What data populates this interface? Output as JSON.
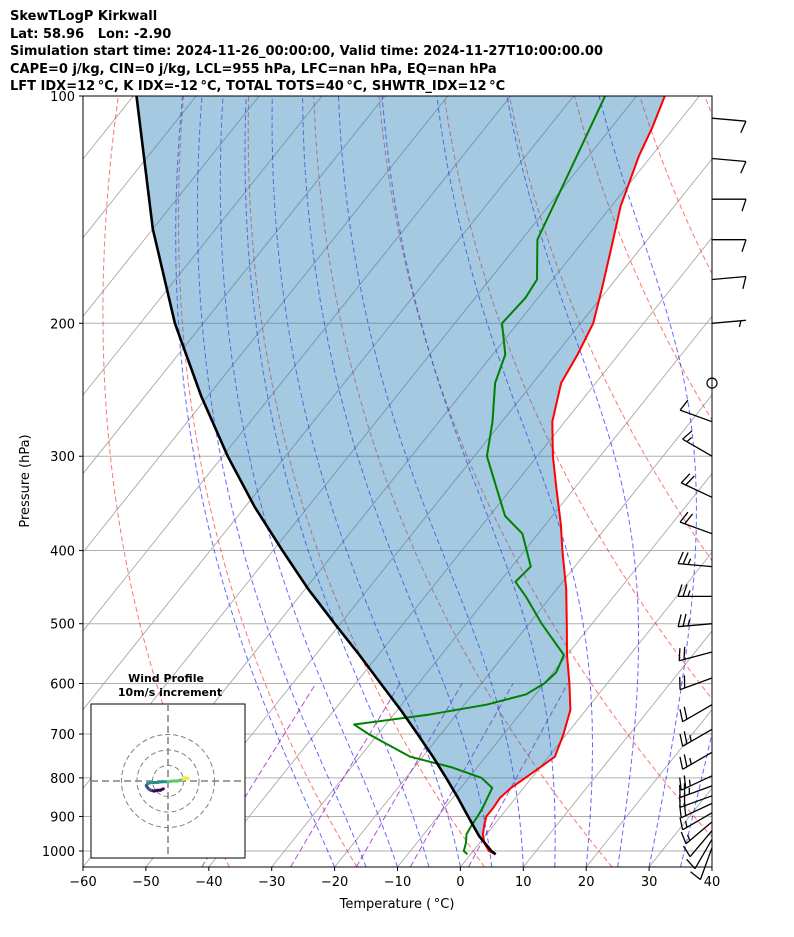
{
  "title": {
    "line1": "SkewTLogP Kirkwall",
    "line2": "Lat: 58.96   Lon: -2.90",
    "line3": "Simulation start time: 2024-11-26_00:00:00, Valid time: 2024-11-27T10:00:00.00",
    "line4": "CAPE=0 j/kg, CIN=0 j/kg, LCL=955 hPa, LFC=nan hPa, EQ=nan hPa",
    "line5": "LFT IDX=12 °C, K IDX=-12 °C, TOTAL TOTS=40 °C, SHWTR_IDX=12 °C"
  },
  "chart_data": {
    "type": "line",
    "xlabel": "Temperature ( °C)",
    "ylabel": "Pressure (hPa)",
    "xlim": [
      -60,
      40
    ],
    "ylim": [
      1050,
      100
    ],
    "yscale": "log",
    "skew": 35,
    "x_ticks": [
      -60,
      -50,
      -40,
      -30,
      -20,
      -10,
      0,
      10,
      20,
      30,
      40
    ],
    "y_ticks": [
      1000,
      900,
      800,
      700,
      600,
      500,
      400,
      300,
      200,
      100
    ],
    "grid": true,
    "colors": {
      "temperature": "#ff0000",
      "dewpoint": "#008000",
      "parcel": "#000000",
      "shading": "#1f77b4",
      "dry_adiabats": "#ff0000",
      "moist_adiabats": "#0000ff",
      "mixing_ratio": "#9400d3",
      "isotherms": "#888888"
    },
    "series": [
      {
        "key": "temperature",
        "pressure": [
          1010,
          1000,
          975,
          950,
          925,
          900,
          875,
          850,
          825,
          800,
          775,
          750,
          700,
          650,
          600,
          550,
          500,
          450,
          400,
          370,
          330,
          300,
          270,
          240,
          220,
          200,
          180,
          160,
          140,
          120,
          110,
          100
        ],
        "values": [
          4.0,
          2.5,
          0.7,
          -0.6,
          -1.5,
          -2.3,
          -2.3,
          -2.5,
          -2.0,
          -1.0,
          0.0,
          1.0,
          -0.5,
          -2.5,
          -6.0,
          -10.0,
          -14.0,
          -18.5,
          -24.0,
          -27.5,
          -33.0,
          -37.5,
          -42.0,
          -45.5,
          -46.5,
          -48.0,
          -51.0,
          -54.5,
          -58.5,
          -62.0,
          -63.5,
          -65.5
        ]
      },
      {
        "key": "dewpoint",
        "pressure": [
          1010,
          1000,
          975,
          950,
          925,
          900,
          875,
          850,
          825,
          800,
          775,
          750,
          700,
          680,
          660,
          640,
          620,
          600,
          580,
          550,
          500,
          460,
          440,
          420,
          380,
          360,
          300,
          270,
          240,
          220,
          200,
          185,
          175,
          155,
          130,
          100
        ],
        "values": [
          -0.5,
          -1.5,
          -2.2,
          -3.2,
          -3.5,
          -3.7,
          -4.0,
          -4.5,
          -5.0,
          -8.0,
          -14.0,
          -22.0,
          -31.5,
          -35.0,
          -24.5,
          -16.5,
          -11.5,
          -10.0,
          -9.5,
          -10.5,
          -18.0,
          -24.0,
          -27.5,
          -27.0,
          -32.5,
          -37.5,
          -48.0,
          -51.5,
          -56.0,
          -58.0,
          -62.5,
          -62.0,
          -62.5,
          -67.5,
          -70.5,
          -75.0
        ]
      },
      {
        "key": "parcel",
        "pressure": [
          1010,
          1000,
          955,
          900,
          850,
          800,
          750,
          700,
          650,
          600,
          550,
          500,
          450,
          400,
          350,
          300,
          250,
          200,
          150,
          100
        ],
        "values": [
          4.0,
          2.9,
          -1.0,
          -5.2,
          -9.2,
          -13.6,
          -18.4,
          -23.7,
          -29.5,
          -36.0,
          -43.0,
          -50.9,
          -59.5,
          -68.5,
          -78.5,
          -89.2,
          -101.0,
          -114.5,
          -130.0,
          -149.5
        ]
      }
    ],
    "wind_barbs": {
      "units": "knots",
      "items": [
        {
          "p": 990,
          "speed": 10,
          "dir": 200
        },
        {
          "p": 965,
          "speed": 10,
          "dir": 210
        },
        {
          "p": 940,
          "speed": 10,
          "dir": 220
        },
        {
          "p": 915,
          "speed": 15,
          "dir": 230
        },
        {
          "p": 890,
          "speed": 15,
          "dir": 240
        },
        {
          "p": 865,
          "speed": 20,
          "dir": 245
        },
        {
          "p": 845,
          "speed": 20,
          "dir": 250
        },
        {
          "p": 820,
          "speed": 25,
          "dir": 250
        },
        {
          "p": 795,
          "speed": 25,
          "dir": 245
        },
        {
          "p": 740,
          "speed": 25,
          "dir": 240
        },
        {
          "p": 690,
          "speed": 25,
          "dir": 240
        },
        {
          "p": 640,
          "speed": 20,
          "dir": 240
        },
        {
          "p": 590,
          "speed": 20,
          "dir": 250
        },
        {
          "p": 545,
          "speed": 20,
          "dir": 255
        },
        {
          "p": 500,
          "speed": 25,
          "dir": 265
        },
        {
          "p": 460,
          "speed": 25,
          "dir": 270
        },
        {
          "p": 420,
          "speed": 25,
          "dir": 275
        },
        {
          "p": 380,
          "speed": 20,
          "dir": 290
        },
        {
          "p": 340,
          "speed": 20,
          "dir": 295
        },
        {
          "p": 300,
          "speed": 15,
          "dir": 300
        },
        {
          "p": 270,
          "speed": 10,
          "dir": 290
        },
        {
          "p": 240,
          "speed": 0,
          "dir": 0
        },
        {
          "p": 200,
          "speed": 5,
          "dir": 85
        },
        {
          "p": 175,
          "speed": 10,
          "dir": 85
        },
        {
          "p": 155,
          "speed": 10,
          "dir": 90
        },
        {
          "p": 137,
          "speed": 10,
          "dir": 90
        },
        {
          "p": 121,
          "speed": 10,
          "dir": 95
        },
        {
          "p": 107,
          "speed": 10,
          "dir": 95
        }
      ]
    },
    "inset": {
      "title_line1": "Wind Profile",
      "title_line2": "10m/s increment",
      "rings_ms": [
        10,
        20,
        30
      ],
      "colormap": [
        "#440154",
        "#3b528b",
        "#21908d",
        "#5dc962",
        "#fde725"
      ],
      "hodograph_uv": [
        [
          -3,
          -5
        ],
        [
          -5,
          -6
        ],
        [
          -7,
          -6
        ],
        [
          -9,
          -6.5
        ],
        [
          -11,
          -6
        ],
        [
          -12,
          -5.5
        ],
        [
          -13,
          -4.5
        ],
        [
          -14,
          -3
        ],
        [
          -13,
          -1.5
        ],
        [
          -10,
          -1
        ],
        [
          -7,
          -1
        ],
        [
          -4,
          -0.5
        ],
        [
          0,
          -0.5
        ],
        [
          3,
          0
        ],
        [
          6,
          0
        ],
        [
          8,
          0.5
        ],
        [
          10,
          1
        ],
        [
          11,
          2
        ],
        [
          12,
          2
        ],
        [
          13,
          1.5
        ]
      ]
    }
  }
}
